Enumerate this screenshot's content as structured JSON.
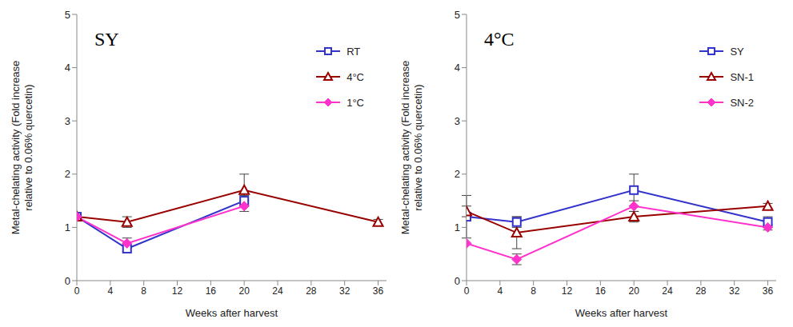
{
  "chart_data": [
    {
      "type": "line",
      "title": "SY",
      "x_label": "Weeks after harvest",
      "y_label": "Metal-chelating activity (Fold increase\nrelative to 0.06% quercetin)",
      "x": [
        0,
        6,
        20,
        36
      ],
      "xlim": [
        0,
        37
      ],
      "xticks": [
        0,
        4,
        8,
        12,
        16,
        20,
        24,
        28,
        32,
        36
      ],
      "ylim": [
        0,
        5
      ],
      "yticks": [
        0,
        1,
        2,
        3,
        4,
        5
      ],
      "legend": "upper right",
      "series": [
        {
          "name": "RT",
          "color": "#3333cc",
          "marker": "square",
          "values": [
            1.2,
            0.6,
            1.5,
            null
          ],
          "errors": [
            0,
            0.05,
            0.1,
            null
          ]
        },
        {
          "name": "4°C",
          "color": "#990000",
          "marker": "triangle",
          "values": [
            1.2,
            1.1,
            1.7,
            1.1
          ],
          "errors": [
            0,
            0.1,
            0.3,
            0.05
          ]
        },
        {
          "name": "1°C",
          "color": "#ff33cc",
          "marker": "diamond",
          "values": [
            1.2,
            0.7,
            1.4,
            null
          ],
          "errors": [
            0,
            0.1,
            0.1,
            null
          ]
        }
      ]
    },
    {
      "type": "line",
      "title": "4°C",
      "x_label": "Weeks after harvest",
      "y_label": "Metal-chelating activity (Fold increase\nrelative to 0.06% quercetin)",
      "x": [
        0,
        6,
        20,
        36
      ],
      "xlim": [
        0,
        37
      ],
      "xticks": [
        0,
        4,
        8,
        12,
        16,
        20,
        24,
        28,
        32,
        36
      ],
      "ylim": [
        0,
        5
      ],
      "yticks": [
        0,
        1,
        2,
        3,
        4,
        5
      ],
      "legend": "upper right",
      "series": [
        {
          "name": "SY",
          "color": "#3333cc",
          "marker": "square",
          "values": [
            1.2,
            1.1,
            1.7,
            1.1
          ],
          "errors": [
            0.4,
            0.1,
            0.3,
            0.1
          ]
        },
        {
          "name": "SN-1",
          "color": "#990000",
          "marker": "triangle",
          "values": [
            1.3,
            0.9,
            1.2,
            1.4
          ],
          "errors": [
            0.1,
            0.3,
            0.1,
            0.05
          ]
        },
        {
          "name": "SN-2",
          "color": "#ff33cc",
          "marker": "diamond",
          "values": [
            0.7,
            0.4,
            1.4,
            1.0
          ],
          "errors": [
            0,
            0.1,
            0.1,
            0.05
          ]
        }
      ]
    }
  ]
}
